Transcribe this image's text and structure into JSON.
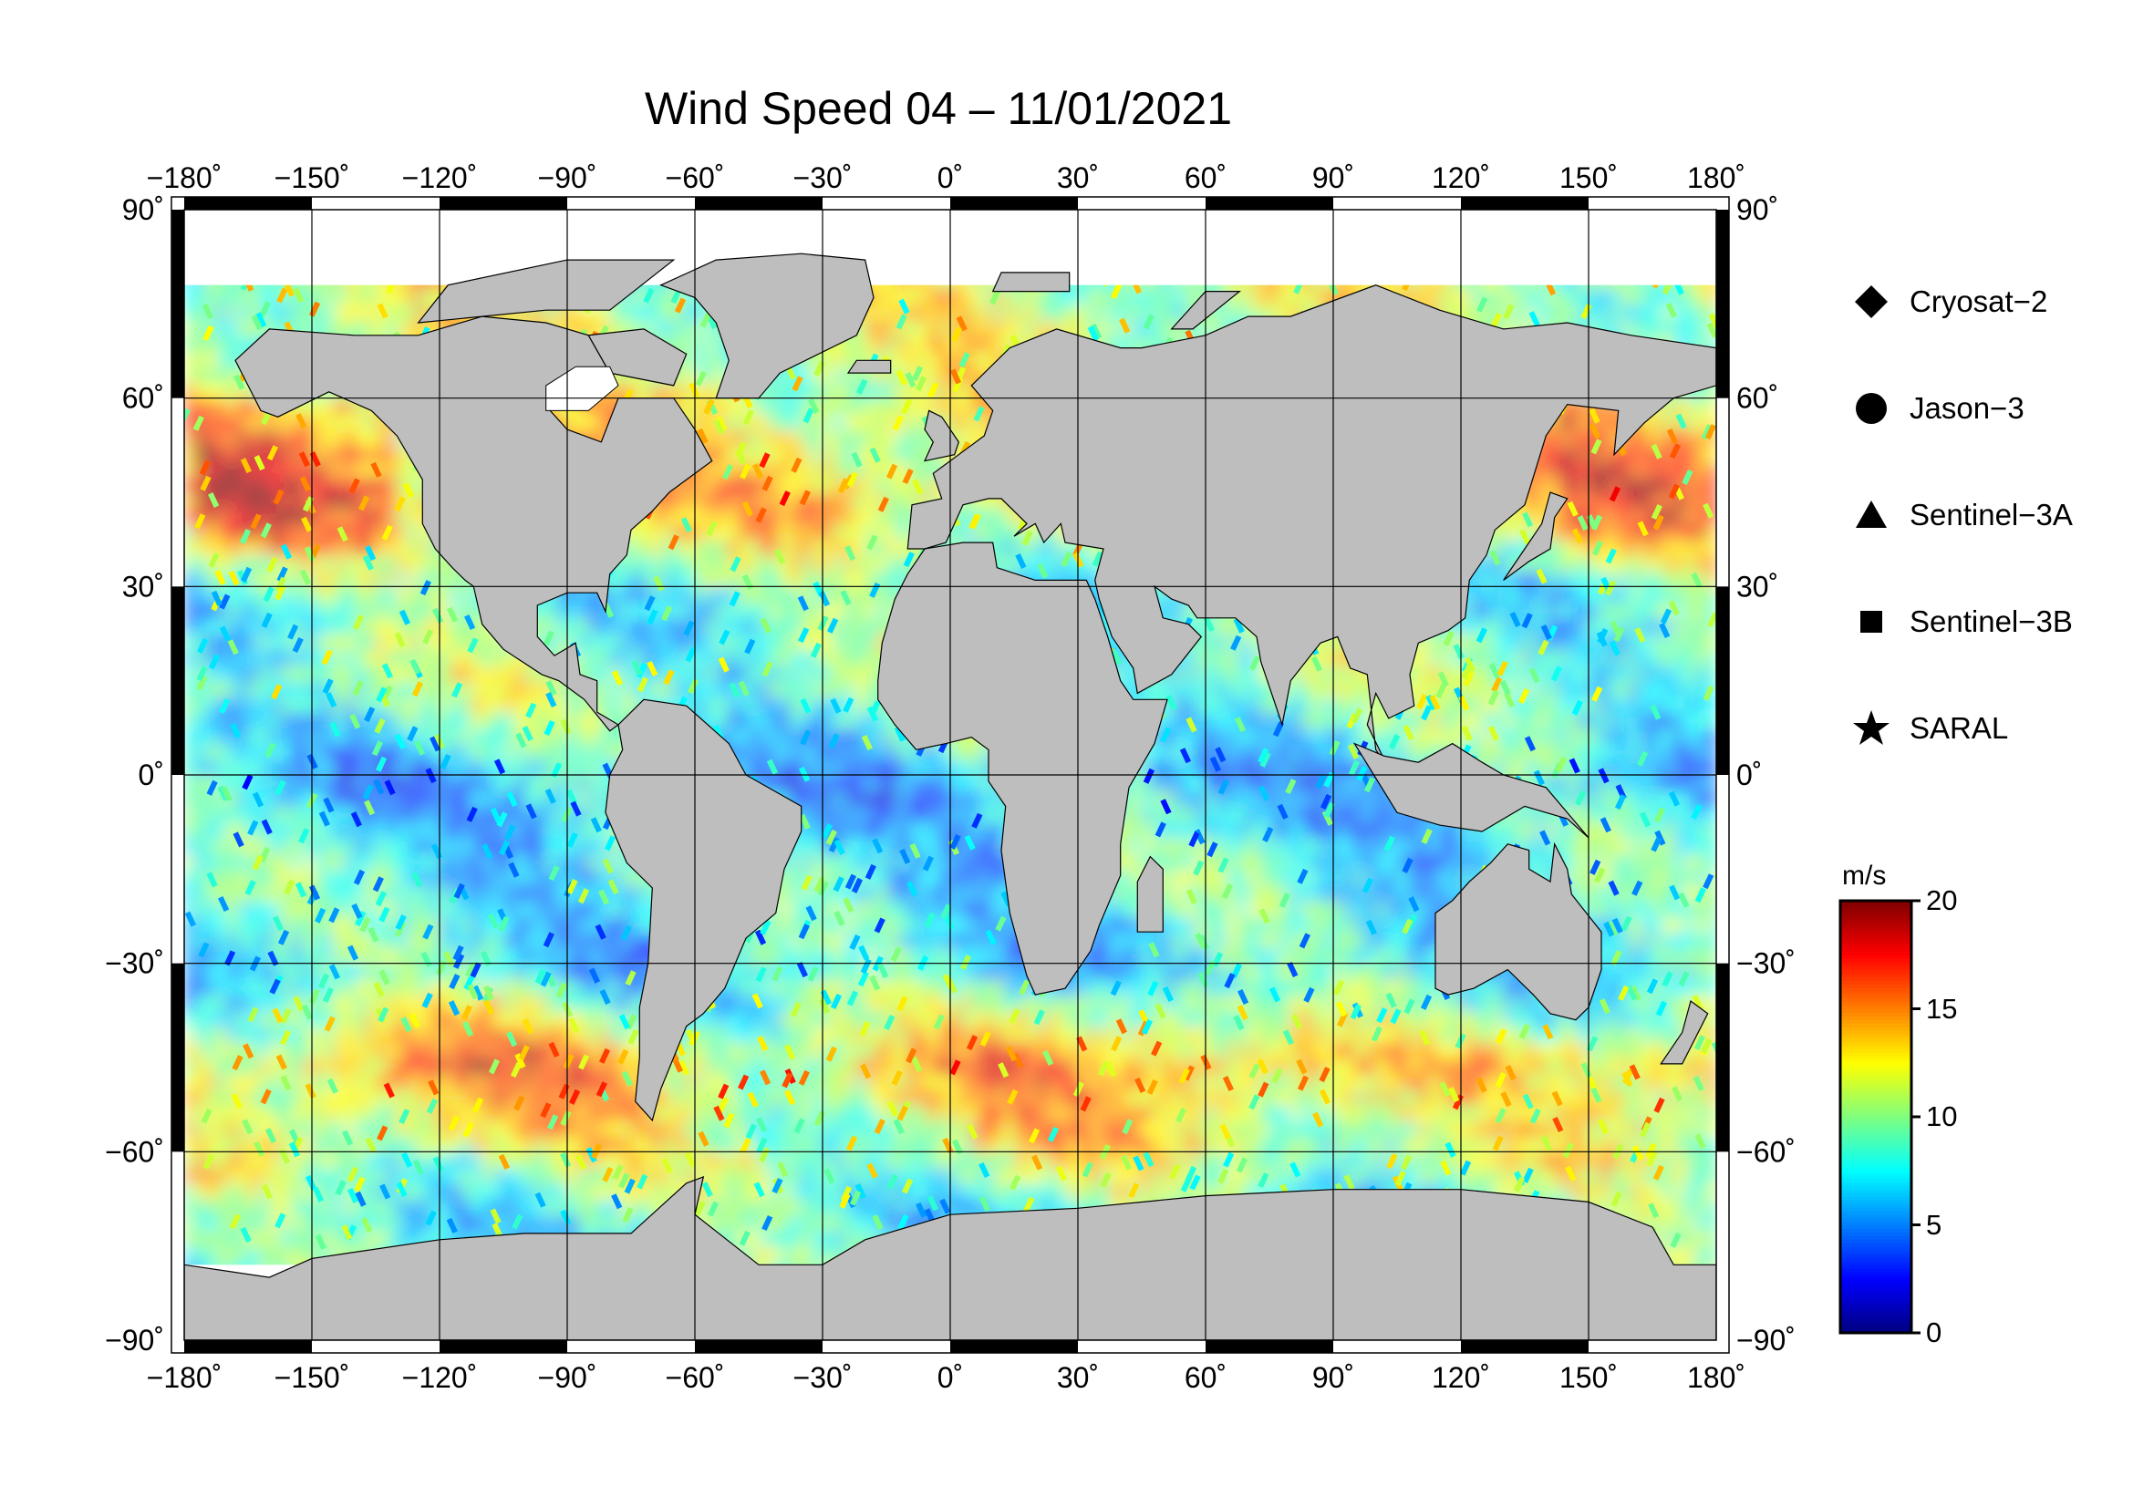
{
  "title": "Wind Speed 04 – 11/01/2021",
  "axes": {
    "lon_labels": [
      "−180˚",
      "−150˚",
      "−120˚",
      "−90˚",
      "−60˚",
      "−30˚",
      "0˚",
      "30˚",
      "60˚",
      "90˚",
      "120˚",
      "150˚",
      "180˚"
    ],
    "lat_labels_left": [
      "90˚",
      "60˚",
      "30˚",
      "0˚",
      "−30˚",
      "−60˚",
      "−90˚"
    ],
    "lat_labels_right": [
      "90˚",
      "60˚",
      "30˚",
      "0˚",
      "−30˚",
      "−60˚",
      "−90˚"
    ],
    "lon_range": [
      -180,
      180
    ],
    "lat_range": [
      -90,
      90
    ],
    "grid_step_deg": 30,
    "grid": true
  },
  "legend": [
    {
      "label": "Cryosat−2",
      "icon": "diamond-icon"
    },
    {
      "label": "Jason−3",
      "icon": "circle-icon"
    },
    {
      "label": "Sentinel−3A",
      "icon": "triangle-icon"
    },
    {
      "label": "Sentinel−3B",
      "icon": "square-icon"
    },
    {
      "label": "SARAL",
      "icon": "star-icon"
    }
  ],
  "colorbar": {
    "unit": "m/s",
    "range": [
      0,
      20
    ],
    "ticks": [
      "20",
      "15",
      "10",
      "5",
      "0"
    ],
    "tick_values": [
      20,
      15,
      10,
      5,
      0
    ],
    "colormap": [
      "#00007f",
      "#0000ff",
      "#007fff",
      "#00ffff",
      "#7fff7f",
      "#ffff00",
      "#ff7f00",
      "#ff0000",
      "#7f0000"
    ]
  },
  "colors": {
    "land": "#bebebe",
    "ice": "#ffffff",
    "frame": "#000000"
  },
  "chart_data": {
    "type": "heatmap",
    "title": "Wind Speed 04 – 11/01/2021",
    "xlabel": "",
    "ylabel": "",
    "xlim": [
      -180,
      180
    ],
    "ylim": [
      -90,
      90
    ],
    "value_range": [
      0,
      20
    ],
    "unit": "m/s",
    "zonal_mean_wind_by_lat": {
      "lat": [
        75,
        60,
        45,
        30,
        15,
        0,
        -15,
        -30,
        -45,
        -60,
        -70
      ],
      "value": [
        11,
        12,
        14,
        8,
        10,
        6,
        8,
        7,
        14,
        11,
        8
      ]
    }
  }
}
